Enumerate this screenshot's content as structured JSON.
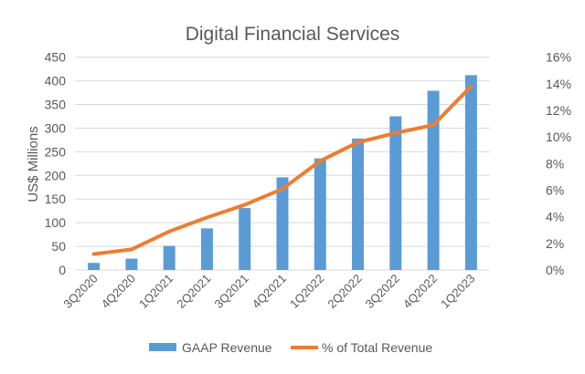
{
  "chart_data": {
    "type": "bar+line",
    "title": "Digital Financial Services",
    "ylabel": "US$ Millions",
    "xlabel": "",
    "categories": [
      "3Q2020",
      "4Q2020",
      "1Q2021",
      "2Q2021",
      "3Q2021",
      "4Q2021",
      "1Q2022",
      "2Q2022",
      "3Q2022",
      "4Q2022",
      "1Q2023"
    ],
    "series": [
      {
        "name": "GAAP Revenue",
        "type": "bar",
        "axis": "left",
        "color": "#5B9BD5",
        "values": [
          15,
          24,
          51,
          88,
          131,
          196,
          236,
          278,
          325,
          379,
          412
        ]
      },
      {
        "name": "% of Total Revenue",
        "type": "line",
        "axis": "right",
        "color": "#ED7D31",
        "values": [
          1.2,
          1.55,
          2.9,
          3.95,
          4.9,
          6.1,
          8.2,
          9.6,
          10.3,
          10.9,
          13.8
        ]
      }
    ],
    "ylim": [
      0,
      450
    ],
    "yticks": [
      "0",
      "50",
      "100",
      "150",
      "200",
      "250",
      "300",
      "350",
      "400",
      "450"
    ],
    "y2lim": [
      0,
      16
    ],
    "y2ticks": [
      "0%",
      "2%",
      "4%",
      "6%",
      "8%",
      "10%",
      "12%",
      "14%",
      "16%"
    ],
    "grid": true,
    "legend": "bottom"
  }
}
